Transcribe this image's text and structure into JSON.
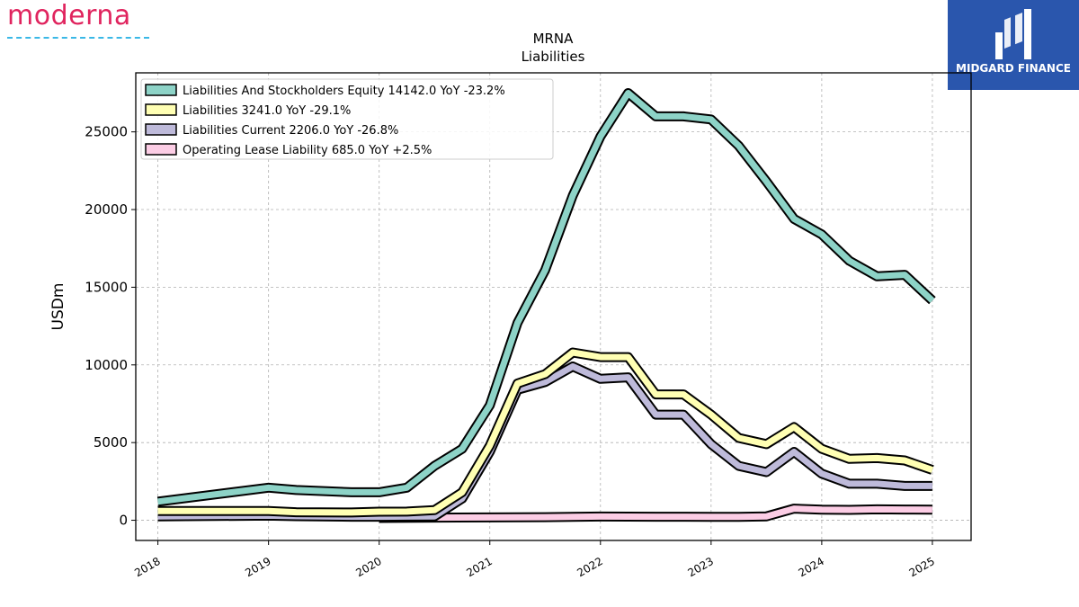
{
  "brand": {
    "left_logo_text": "moderna",
    "right_logo_text": "MIDGARD FINANCE"
  },
  "colors": {
    "moderna_red": "#e0245e",
    "moderna_blue": "#3ab8e6",
    "midgard_blue": "#2a56ad"
  },
  "chart_data": {
    "type": "line",
    "title": "MRNA",
    "subtitle": "Liabilities",
    "xlabel": "",
    "ylabel": "USDm",
    "x_ticks": [
      "2018",
      "2019",
      "2020",
      "2021",
      "2022",
      "2023",
      "2024",
      "2025"
    ],
    "y_ticks": [
      0,
      5000,
      10000,
      15000,
      20000,
      25000
    ],
    "xlim": [
      2017.8,
      2025.35
    ],
    "ylim": [
      -1300,
      28800
    ],
    "grid": true,
    "legend_position": "top-left",
    "series": [
      {
        "name": "Liabilities And Stockholders Equity",
        "legend_label": "Liabilities And Stockholders Equity  14142.0 YoY -23.2%",
        "color": "#8dd3c7",
        "points": [
          [
            2018.0,
            1200
          ],
          [
            2019.0,
            2100
          ],
          [
            2019.25,
            1950
          ],
          [
            2019.75,
            1800
          ],
          [
            2020.0,
            1800
          ],
          [
            2020.25,
            2100
          ],
          [
            2020.5,
            3500
          ],
          [
            2020.75,
            4600
          ],
          [
            2021.0,
            7400
          ],
          [
            2021.25,
            12700
          ],
          [
            2021.5,
            16100
          ],
          [
            2021.75,
            20900
          ],
          [
            2022.0,
            24700
          ],
          [
            2022.25,
            27500
          ],
          [
            2022.5,
            26000
          ],
          [
            2022.75,
            26000
          ],
          [
            2023.0,
            25800
          ],
          [
            2023.25,
            24100
          ],
          [
            2023.5,
            21800
          ],
          [
            2023.75,
            19400
          ],
          [
            2024.0,
            18400
          ],
          [
            2024.25,
            16700
          ],
          [
            2024.5,
            15700
          ],
          [
            2024.75,
            15800
          ],
          [
            2025.0,
            14142
          ]
        ]
      },
      {
        "name": "Liabilities",
        "legend_label": "Liabilities  3241.0 YoY -29.1%",
        "color": "#ffffb3",
        "points": [
          [
            2018.0,
            600
          ],
          [
            2019.0,
            600
          ],
          [
            2019.25,
            520
          ],
          [
            2019.75,
            500
          ],
          [
            2020.0,
            550
          ],
          [
            2020.25,
            560
          ],
          [
            2020.5,
            650
          ],
          [
            2020.75,
            1800
          ],
          [
            2021.0,
            4800
          ],
          [
            2021.25,
            8800
          ],
          [
            2021.5,
            9400
          ],
          [
            2021.75,
            10800
          ],
          [
            2022.0,
            10500
          ],
          [
            2022.25,
            10500
          ],
          [
            2022.5,
            8100
          ],
          [
            2022.75,
            8100
          ],
          [
            2023.0,
            6800
          ],
          [
            2023.25,
            5300
          ],
          [
            2023.5,
            4900
          ],
          [
            2023.75,
            6000
          ],
          [
            2024.0,
            4600
          ],
          [
            2024.25,
            3950
          ],
          [
            2024.5,
            4000
          ],
          [
            2024.75,
            3850
          ],
          [
            2025.0,
            3241
          ]
        ]
      },
      {
        "name": "Liabilities Current",
        "legend_label": "Liabilities Current  2206.0 YoY -26.8%",
        "color": "#bebada",
        "points": [
          [
            2018.0,
            250
          ],
          [
            2019.0,
            300
          ],
          [
            2019.25,
            260
          ],
          [
            2019.75,
            230
          ],
          [
            2020.0,
            230
          ],
          [
            2020.25,
            240
          ],
          [
            2020.5,
            250
          ],
          [
            2020.75,
            1400
          ],
          [
            2021.0,
            4400
          ],
          [
            2021.25,
            8400
          ],
          [
            2021.5,
            8900
          ],
          [
            2021.75,
            9900
          ],
          [
            2022.0,
            9100
          ],
          [
            2022.25,
            9200
          ],
          [
            2022.5,
            6800
          ],
          [
            2022.75,
            6800
          ],
          [
            2023.0,
            4900
          ],
          [
            2023.25,
            3500
          ],
          [
            2023.5,
            3100
          ],
          [
            2023.75,
            4400
          ],
          [
            2024.0,
            3000
          ],
          [
            2024.25,
            2350
          ],
          [
            2024.5,
            2350
          ],
          [
            2024.75,
            2206
          ],
          [
            2025.0,
            2206
          ]
        ]
      },
      {
        "name": "Operating Lease Liability",
        "legend_label": "Operating Lease Liability  685.0 YoY +2.5%",
        "color": "#fccde5",
        "points": [
          [
            2020.0,
            150
          ],
          [
            2020.5,
            170
          ],
          [
            2021.0,
            180
          ],
          [
            2021.5,
            200
          ],
          [
            2022.0,
            240
          ],
          [
            2022.5,
            230
          ],
          [
            2023.0,
            220
          ],
          [
            2023.25,
            220
          ],
          [
            2023.5,
            250
          ],
          [
            2023.75,
            750
          ],
          [
            2024.0,
            680
          ],
          [
            2024.25,
            670
          ],
          [
            2024.5,
            700
          ],
          [
            2024.75,
            690
          ],
          [
            2025.0,
            685
          ]
        ]
      }
    ]
  }
}
